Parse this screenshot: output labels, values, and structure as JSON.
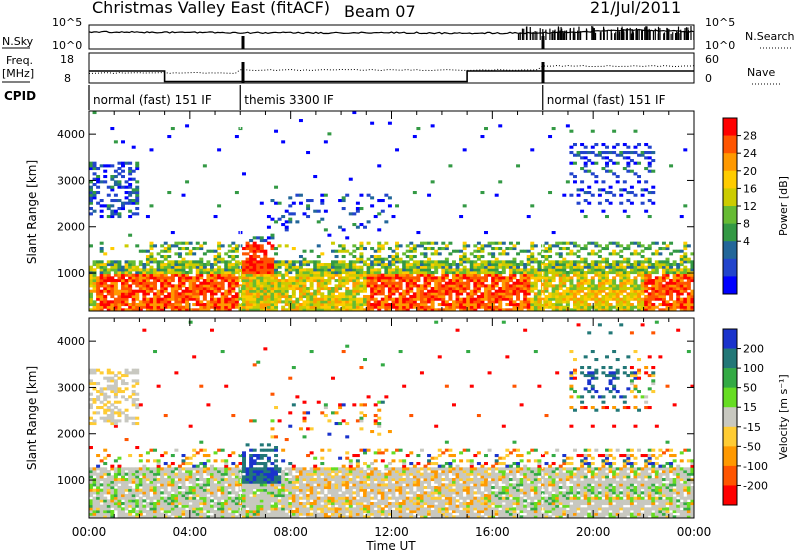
{
  "header": {
    "station": "Christmas Valley East (fitACF)",
    "beam": "Beam 07",
    "date": "21/Jul/2011"
  },
  "panels": {
    "nsky_label": "N.Sky",
    "nsearch_label": "N.Search",
    "freq_label": "Freq.",
    "freq_unit": "[MHz]",
    "nave_label": "Nave",
    "cpid_label": "CPID",
    "cpid_segments": [
      {
        "label": "normal (fast) 151 IF",
        "start_h": 0,
        "end_h": 6
      },
      {
        "label": "themis 3300 IF",
        "start_h": 6,
        "end_h": 18
      },
      {
        "label": "normal (fast) 151 IF",
        "start_h": 18,
        "end_h": 24
      }
    ],
    "log_ticks": [
      "10^5",
      "10^0"
    ],
    "freq_ticks": [
      "18",
      "8"
    ],
    "nave_ticks": [
      "60",
      "0"
    ]
  },
  "power_colorbar": {
    "label": "Power [dB]",
    "ticks": [
      "28",
      "24",
      "20",
      "16",
      "12",
      "8",
      "4"
    ],
    "colors": [
      "#ff0000",
      "#ff5500",
      "#ff9900",
      "#ffcc00",
      "#cccc00",
      "#66bb33",
      "#339944",
      "#226699",
      "#2244cc",
      "#0000ff"
    ]
  },
  "velocity_colorbar": {
    "label": "Velocity [m s⁻¹]",
    "ticks": [
      "200",
      "100",
      "50",
      "15",
      "-15",
      "-50",
      "-100",
      "-200"
    ],
    "colors": [
      "#1a33cc",
      "#227777",
      "#33aa44",
      "#66dd22",
      "#c8c8c0",
      "#ffcc33",
      "#ff9900",
      "#ff5500",
      "#ff0000"
    ]
  },
  "chart_data": [
    {
      "type": "line",
      "title": "N.Sky / N.Search",
      "x": [
        0,
        1,
        2,
        3,
        4,
        5,
        6,
        7,
        8,
        9,
        10,
        11,
        12,
        13,
        14,
        15,
        16,
        17,
        18,
        19,
        20,
        21,
        22,
        23,
        24
      ],
      "yscale": "log",
      "ylim": [
        1,
        100000
      ],
      "series": [
        {
          "name": "N.Sky",
          "values": [
            3000,
            3500,
            3200,
            3000,
            2800,
            2600,
            2500,
            2400,
            2300,
            2200,
            2300,
            2400,
            2500,
            2300,
            2100,
            2000,
            2100,
            2200,
            2400,
            3000,
            5000,
            9000,
            8000,
            6000,
            4000
          ]
        }
      ]
    },
    {
      "type": "line",
      "title": "Freq. / Nave",
      "x": [
        0,
        3,
        3,
        15,
        15,
        24
      ],
      "ylim": [
        8,
        18
      ],
      "series": [
        {
          "name": "Freq.",
          "values": [
            14,
            14,
            10.5,
            10.5,
            14,
            14
          ]
        }
      ]
    },
    {
      "type": "heatmap",
      "title": "Power",
      "xlabel": "Time UT",
      "ylabel": "Slant Range [km]",
      "x_ticks": [
        "00:00",
        "04:00",
        "08:00",
        "12:00",
        "16:00",
        "20:00",
        "00:00"
      ],
      "y_ticks": [
        1000,
        2000,
        3000,
        4000
      ],
      "xlim": [
        0,
        24
      ],
      "ylim": [
        180,
        4500
      ],
      "clim": [
        0,
        30
      ]
    },
    {
      "type": "heatmap",
      "title": "Velocity",
      "xlabel": "Time UT",
      "ylabel": "Slant Range [km]",
      "x_ticks": [
        "00:00",
        "04:00",
        "08:00",
        "12:00",
        "16:00",
        "20:00",
        "00:00"
      ],
      "y_ticks": [
        1000,
        2000,
        3000,
        4000
      ],
      "xlim": [
        0,
        24
      ],
      "ylim": [
        180,
        4500
      ],
      "clim": [
        -200,
        200
      ]
    }
  ],
  "x_axis": {
    "ticks": [
      "00:00",
      "04:00",
      "08:00",
      "12:00",
      "16:00",
      "20:00",
      "00:00"
    ],
    "label": "Time UT"
  },
  "y_axis": {
    "label": "Slant Range [km]",
    "ticks": [
      "1000",
      "2000",
      "3000",
      "4000"
    ]
  }
}
